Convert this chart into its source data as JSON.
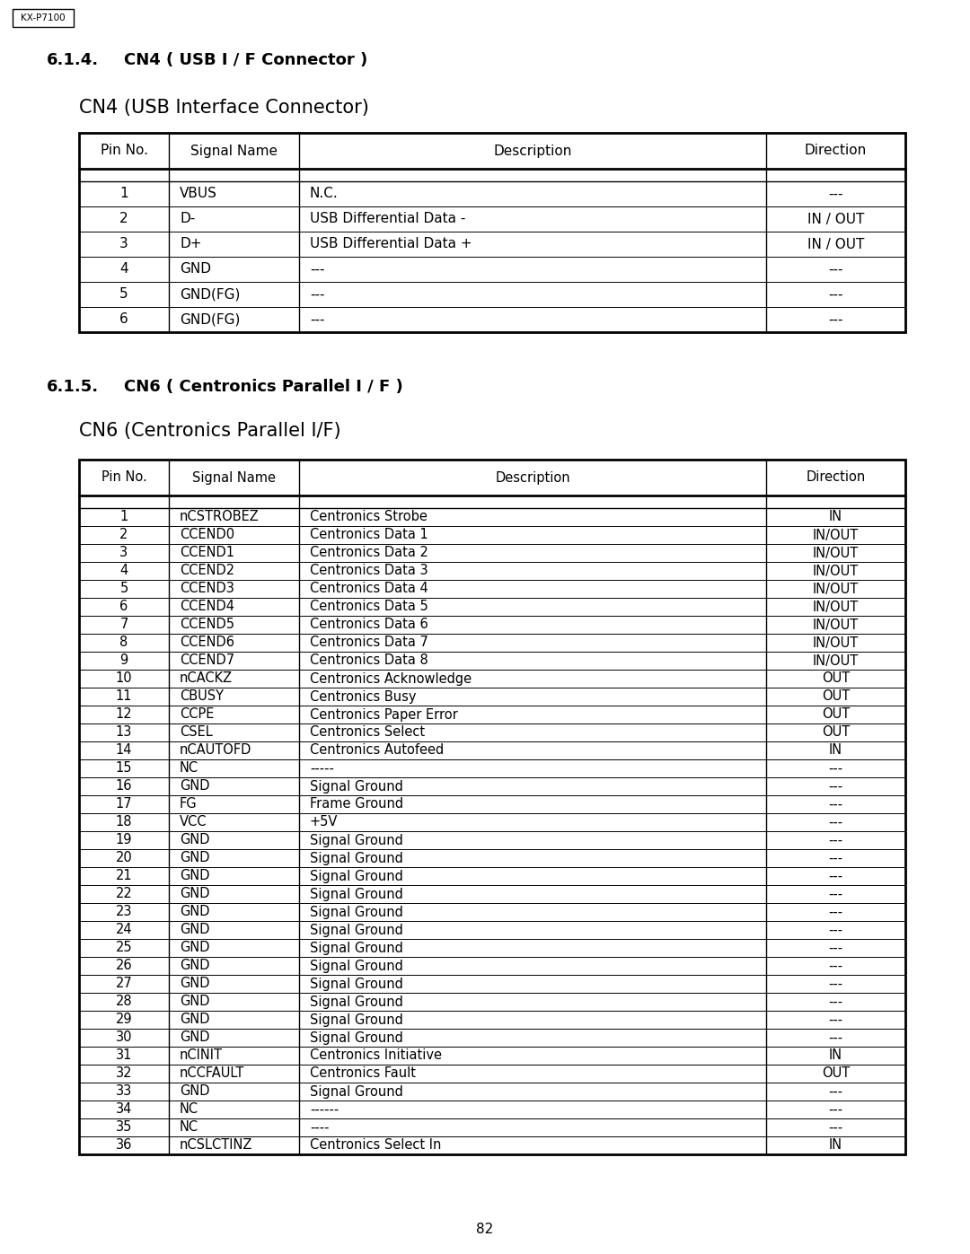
{
  "page_label": "KX-P7100",
  "section1_heading_num": "6.1.4.",
  "section1_heading_text": "CN4 ( USB I / F Connector )",
  "table1_title": "CN4 (USB Interface Connector)",
  "table1_headers": [
    "Pin No.",
    "Signal Name",
    "Description",
    "Direction"
  ],
  "table1_rows": [
    [
      "1",
      "VBUS",
      "N.C.",
      "---"
    ],
    [
      "2",
      "D-",
      "USB Differential Data -",
      "IN / OUT"
    ],
    [
      "3",
      "D+",
      "USB Differential Data +",
      "IN / OUT"
    ],
    [
      "4",
      "GND",
      "---",
      "---"
    ],
    [
      "5",
      "GND(FG)",
      "---",
      "---"
    ],
    [
      "6",
      "GND(FG)",
      "---",
      "---"
    ]
  ],
  "section2_heading_num": "6.1.5.",
  "section2_heading_text": "CN6 ( Centronics Parallel I / F )",
  "table2_title": "CN6 (Centronics Parallel I/F)",
  "table2_headers": [
    "Pin No.",
    "Signal Name",
    "Description",
    "Direction"
  ],
  "table2_rows": [
    [
      "1",
      "nCSTROBEZ",
      "Centronics Strobe",
      "IN"
    ],
    [
      "2",
      "CCEND0",
      "Centronics Data 1",
      "IN/OUT"
    ],
    [
      "3",
      "CCEND1",
      "Centronics Data 2",
      "IN/OUT"
    ],
    [
      "4",
      "CCEND2",
      "Centronics Data 3",
      "IN/OUT"
    ],
    [
      "5",
      "CCEND3",
      "Centronics Data 4",
      "IN/OUT"
    ],
    [
      "6",
      "CCEND4",
      "Centronics Data 5",
      "IN/OUT"
    ],
    [
      "7",
      "CCEND5",
      "Centronics Data 6",
      "IN/OUT"
    ],
    [
      "8",
      "CCEND6",
      "Centronics Data 7",
      "IN/OUT"
    ],
    [
      "9",
      "CCEND7",
      "Centronics Data 8",
      "IN/OUT"
    ],
    [
      "10",
      "nCACKZ",
      "Centronics Acknowledge",
      "OUT"
    ],
    [
      "11",
      "CBUSY",
      "Centronics Busy",
      "OUT"
    ],
    [
      "12",
      "CCPE",
      "Centronics Paper Error",
      "OUT"
    ],
    [
      "13",
      "CSEL",
      "Centronics Select",
      "OUT"
    ],
    [
      "14",
      "nCAUTOFD",
      "Centronics Autofeed",
      "IN"
    ],
    [
      "15",
      "NC",
      "-----",
      "---"
    ],
    [
      "16",
      "GND",
      "Signal Ground",
      "---"
    ],
    [
      "17",
      "FG",
      "Frame Ground",
      "---"
    ],
    [
      "18",
      "VCC",
      "+5V",
      "---"
    ],
    [
      "19",
      "GND",
      "Signal Ground",
      "---"
    ],
    [
      "20",
      "GND",
      "Signal Ground",
      "---"
    ],
    [
      "21",
      "GND",
      "Signal Ground",
      "---"
    ],
    [
      "22",
      "GND",
      "Signal Ground",
      "---"
    ],
    [
      "23",
      "GND",
      "Signal Ground",
      "---"
    ],
    [
      "24",
      "GND",
      "Signal Ground",
      "---"
    ],
    [
      "25",
      "GND",
      "Signal Ground",
      "---"
    ],
    [
      "26",
      "GND",
      "Signal Ground",
      "---"
    ],
    [
      "27",
      "GND",
      "Signal Ground",
      "---"
    ],
    [
      "28",
      "GND",
      "Signal Ground",
      "---"
    ],
    [
      "29",
      "GND",
      "Signal Ground",
      "---"
    ],
    [
      "30",
      "GND",
      "Signal Ground",
      "---"
    ],
    [
      "31",
      "nCINIT",
      "Centronics Initiative",
      "IN"
    ],
    [
      "32",
      "nCCFAULT",
      "Centronics Fault",
      "OUT"
    ],
    [
      "33",
      "GND",
      "Signal Ground",
      "---"
    ],
    [
      "34",
      "NC",
      "------",
      "---"
    ],
    [
      "35",
      "NC",
      "----",
      "---"
    ],
    [
      "36",
      "nCSLCTINZ",
      "Centronics Select In",
      "IN"
    ]
  ],
  "page_number": "82",
  "bg_color": "#ffffff",
  "text_color": "#000000"
}
